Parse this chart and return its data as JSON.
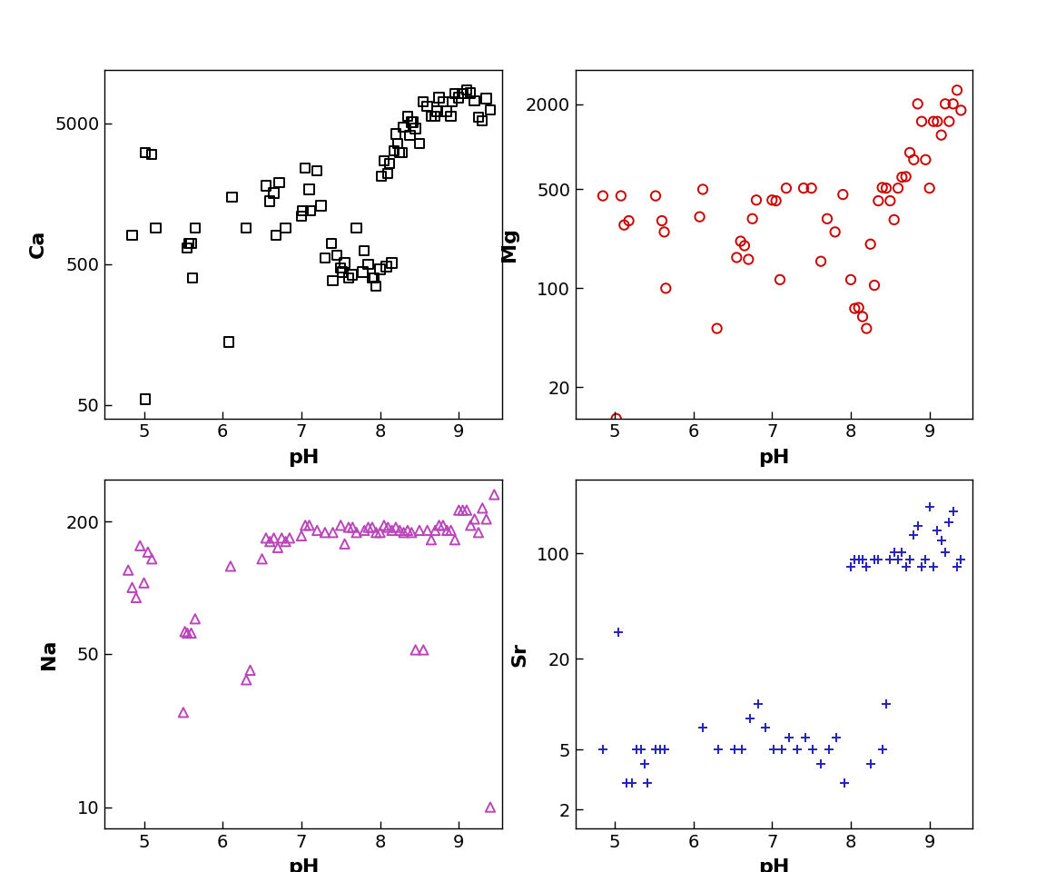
{
  "ca_ph": [
    4.85,
    5.02,
    5.02,
    5.1,
    5.15,
    5.55,
    5.57,
    5.6,
    5.62,
    5.65,
    6.08,
    6.12,
    6.3,
    6.55,
    6.6,
    6.65,
    6.68,
    6.72,
    6.8,
    7.0,
    7.02,
    7.05,
    7.1,
    7.12,
    7.2,
    7.25,
    7.3,
    7.38,
    7.4,
    7.45,
    7.5,
    7.52,
    7.55,
    7.6,
    7.65,
    7.7,
    7.78,
    7.8,
    7.85,
    7.9,
    7.92,
    7.95,
    8.0,
    8.02,
    8.05,
    8.08,
    8.1,
    8.12,
    8.15,
    8.18,
    8.2,
    8.22,
    8.25,
    8.28,
    8.3,
    8.35,
    8.38,
    8.4,
    8.42,
    8.45,
    8.5,
    8.55,
    8.6,
    8.65,
    8.7,
    8.72,
    8.75,
    8.8,
    8.85,
    8.9,
    8.92,
    8.95,
    9.0,
    9.05,
    9.1,
    9.15,
    9.2,
    9.25,
    9.3,
    9.35,
    9.4
  ],
  "ca_vals": [
    800,
    55,
    3100,
    3000,
    900,
    650,
    700,
    700,
    400,
    900,
    140,
    1500,
    900,
    1800,
    1400,
    1600,
    800,
    1900,
    900,
    1100,
    1200,
    2400,
    1700,
    1200,
    2300,
    1300,
    550,
    700,
    380,
    580,
    470,
    440,
    510,
    400,
    420,
    900,
    440,
    620,
    500,
    400,
    400,
    350,
    460,
    2100,
    2700,
    480,
    2200,
    2600,
    510,
    3200,
    4200,
    3600,
    3100,
    3100,
    4700,
    5600,
    4100,
    5100,
    5100,
    4600,
    3600,
    7100,
    6600,
    5600,
    5600,
    6100,
    7600,
    7100,
    6100,
    5600,
    7100,
    8100,
    7600,
    8100,
    8600,
    8200,
    7200,
    5500,
    5200,
    7500,
    6200
  ],
  "mg_ph": [
    4.85,
    5.02,
    5.08,
    5.12,
    5.18,
    5.52,
    5.6,
    5.63,
    5.65,
    6.08,
    6.12,
    6.3,
    6.55,
    6.6,
    6.65,
    6.7,
    6.75,
    6.8,
    7.0,
    7.05,
    7.1,
    7.18,
    7.4,
    7.5,
    7.62,
    7.7,
    7.8,
    7.9,
    8.0,
    8.05,
    8.1,
    8.15,
    8.2,
    8.25,
    8.3,
    8.35,
    8.4,
    8.45,
    8.5,
    8.55,
    8.6,
    8.65,
    8.7,
    8.75,
    8.8,
    8.85,
    8.9,
    8.95,
    9.0,
    9.05,
    9.1,
    9.15,
    9.2,
    9.25,
    9.3,
    9.35,
    9.4
  ],
  "mg_vals": [
    450,
    12,
    450,
    280,
    300,
    450,
    300,
    250,
    100,
    320,
    500,
    52,
    165,
    215,
    200,
    160,
    310,
    420,
    420,
    415,
    115,
    510,
    510,
    510,
    155,
    310,
    250,
    460,
    115,
    72,
    73,
    63,
    52,
    205,
    105,
    415,
    515,
    510,
    415,
    305,
    510,
    610,
    615,
    910,
    810,
    2010,
    1510,
    810,
    510,
    1510,
    1510,
    1210,
    2010,
    1510,
    2010,
    2510,
    1810
  ],
  "na_ph": [
    4.8,
    4.85,
    4.9,
    4.95,
    5.0,
    5.05,
    5.1,
    5.5,
    5.52,
    5.55,
    5.6,
    5.65,
    6.1,
    6.3,
    6.35,
    6.5,
    6.55,
    6.6,
    6.65,
    6.7,
    6.75,
    6.8,
    6.85,
    7.0,
    7.05,
    7.1,
    7.2,
    7.3,
    7.4,
    7.5,
    7.55,
    7.6,
    7.65,
    7.7,
    7.8,
    7.85,
    7.9,
    7.95,
    8.0,
    8.05,
    8.1,
    8.15,
    8.2,
    8.25,
    8.3,
    8.35,
    8.4,
    8.45,
    8.5,
    8.55,
    8.6,
    8.65,
    8.7,
    8.75,
    8.8,
    8.85,
    8.9,
    8.95,
    9.0,
    9.05,
    9.1,
    9.15,
    9.2,
    9.25,
    9.3,
    9.35,
    9.4,
    9.45
  ],
  "na_vals": [
    120,
    100,
    90,
    155,
    105,
    145,
    135,
    27,
    63,
    62,
    62,
    72,
    125,
    38,
    42,
    135,
    168,
    162,
    168,
    152,
    168,
    162,
    168,
    172,
    192,
    192,
    182,
    178,
    178,
    192,
    158,
    188,
    188,
    178,
    182,
    188,
    188,
    178,
    178,
    192,
    188,
    182,
    188,
    182,
    178,
    182,
    178,
    52,
    182,
    52,
    182,
    165,
    182,
    192,
    192,
    182,
    182,
    165,
    225,
    225,
    225,
    192,
    205,
    178,
    230,
    205,
    10,
    265
  ],
  "sr_ph": [
    4.85,
    5.05,
    5.15,
    5.22,
    5.28,
    5.33,
    5.38,
    5.42,
    5.52,
    5.58,
    5.63,
    6.12,
    6.32,
    6.52,
    6.62,
    6.72,
    6.82,
    6.92,
    7.02,
    7.12,
    7.22,
    7.32,
    7.42,
    7.52,
    7.62,
    7.72,
    7.82,
    7.92,
    8.0,
    8.05,
    8.1,
    8.15,
    8.2,
    8.25,
    8.3,
    8.35,
    8.4,
    8.45,
    8.5,
    8.55,
    8.6,
    8.65,
    8.7,
    8.75,
    8.8,
    8.85,
    8.9,
    8.95,
    9.0,
    9.05,
    9.1,
    9.15,
    9.2,
    9.25,
    9.3,
    9.35,
    9.4
  ],
  "sr_vals": [
    5,
    30,
    3,
    3,
    5,
    5,
    4,
    3,
    5,
    5,
    5,
    7,
    5,
    5,
    5,
    8,
    10,
    7,
    5,
    5,
    6,
    5,
    6,
    5,
    4,
    5,
    6,
    3,
    82,
    92,
    92,
    92,
    82,
    4,
    92,
    92,
    5,
    10,
    92,
    102,
    92,
    102,
    82,
    92,
    132,
    152,
    82,
    92,
    205,
    82,
    142,
    122,
    102,
    162,
    192,
    82,
    92
  ],
  "ca_color": "#000000",
  "mg_color": "#cc0000",
  "na_color": "#bb44bb",
  "sr_color": "#2222bb",
  "bg_color": "#ffffff",
  "xlabel": "pH",
  "ylabel_ca": "Ca",
  "ylabel_mg": "Mg",
  "ylabel_na": "Na",
  "ylabel_sr": "Sr",
  "ca_ylim": [
    40,
    12000
  ],
  "mg_ylim": [
    12,
    3500
  ],
  "na_ylim": [
    8,
    310
  ],
  "sr_ylim": [
    1.5,
    310
  ],
  "xlim": [
    4.5,
    9.55
  ],
  "ca_yticks": [
    50,
    500,
    5000
  ],
  "mg_yticks": [
    20,
    100,
    500,
    2000
  ],
  "na_yticks": [
    10,
    50,
    200
  ],
  "sr_yticks": [
    2,
    5,
    20,
    100
  ],
  "ca_ytick_labels": [
    "50",
    "500",
    "5000"
  ],
  "mg_ytick_labels": [
    "20",
    "100",
    "500",
    "2000"
  ],
  "na_ytick_labels": [
    "10",
    "50",
    "200"
  ],
  "sr_ytick_labels": [
    "2",
    "5",
    "20",
    "100"
  ],
  "xticks": [
    5,
    6,
    7,
    8,
    9
  ],
  "marker_size": 55,
  "linewidth": 1.4,
  "label_fontsize": 16,
  "tick_fontsize": 14
}
